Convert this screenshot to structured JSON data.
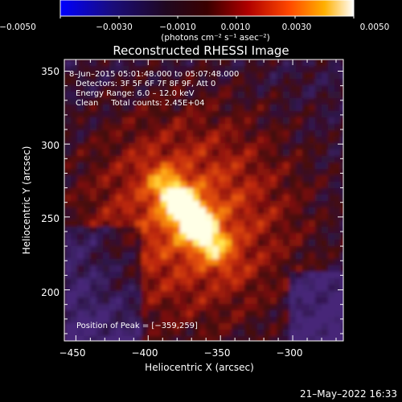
{
  "colorbar": {
    "tick_labels": [
      "−0.0050",
      "−0.0030",
      "−0.0010",
      "0.0010",
      "0.0030",
      "0.0050"
    ],
    "units_label": "(photons cm⁻² s⁻¹ asec⁻²)",
    "range": [
      -0.005,
      0.005
    ],
    "colormap": "blue-black-red-yellow-white"
  },
  "image": {
    "title": "Reconstructed RHESSI Image",
    "info_lines": [
      " 8–Jun–2015 05:01:48.000 to 05:07:48.000",
      "Detectors: 3F 5F 6F 7F 8F 9F, Att 0",
      "Energy Range: 6.0 – 12.0 keV",
      "Clean     Total counts: 2.45E+04"
    ],
    "peak_label": "Position of Peak = [−359,259]",
    "peak_position": [
      -359,
      259
    ]
  },
  "axes": {
    "xlabel": "Heliocentric X (arcsec)",
    "ylabel": "Heliocentric Y (arcsec)",
    "xticks": [
      "−450",
      "−400",
      "−350",
      "−300"
    ],
    "yticks": [
      "350",
      "300",
      "250",
      "200"
    ],
    "xlim": [
      -458,
      -265
    ],
    "ylim": [
      165,
      358
    ]
  },
  "footer": {
    "timestamp": "21–May–2022 16:33"
  },
  "colors": {
    "background": "#000000",
    "text": "#ffffff"
  }
}
